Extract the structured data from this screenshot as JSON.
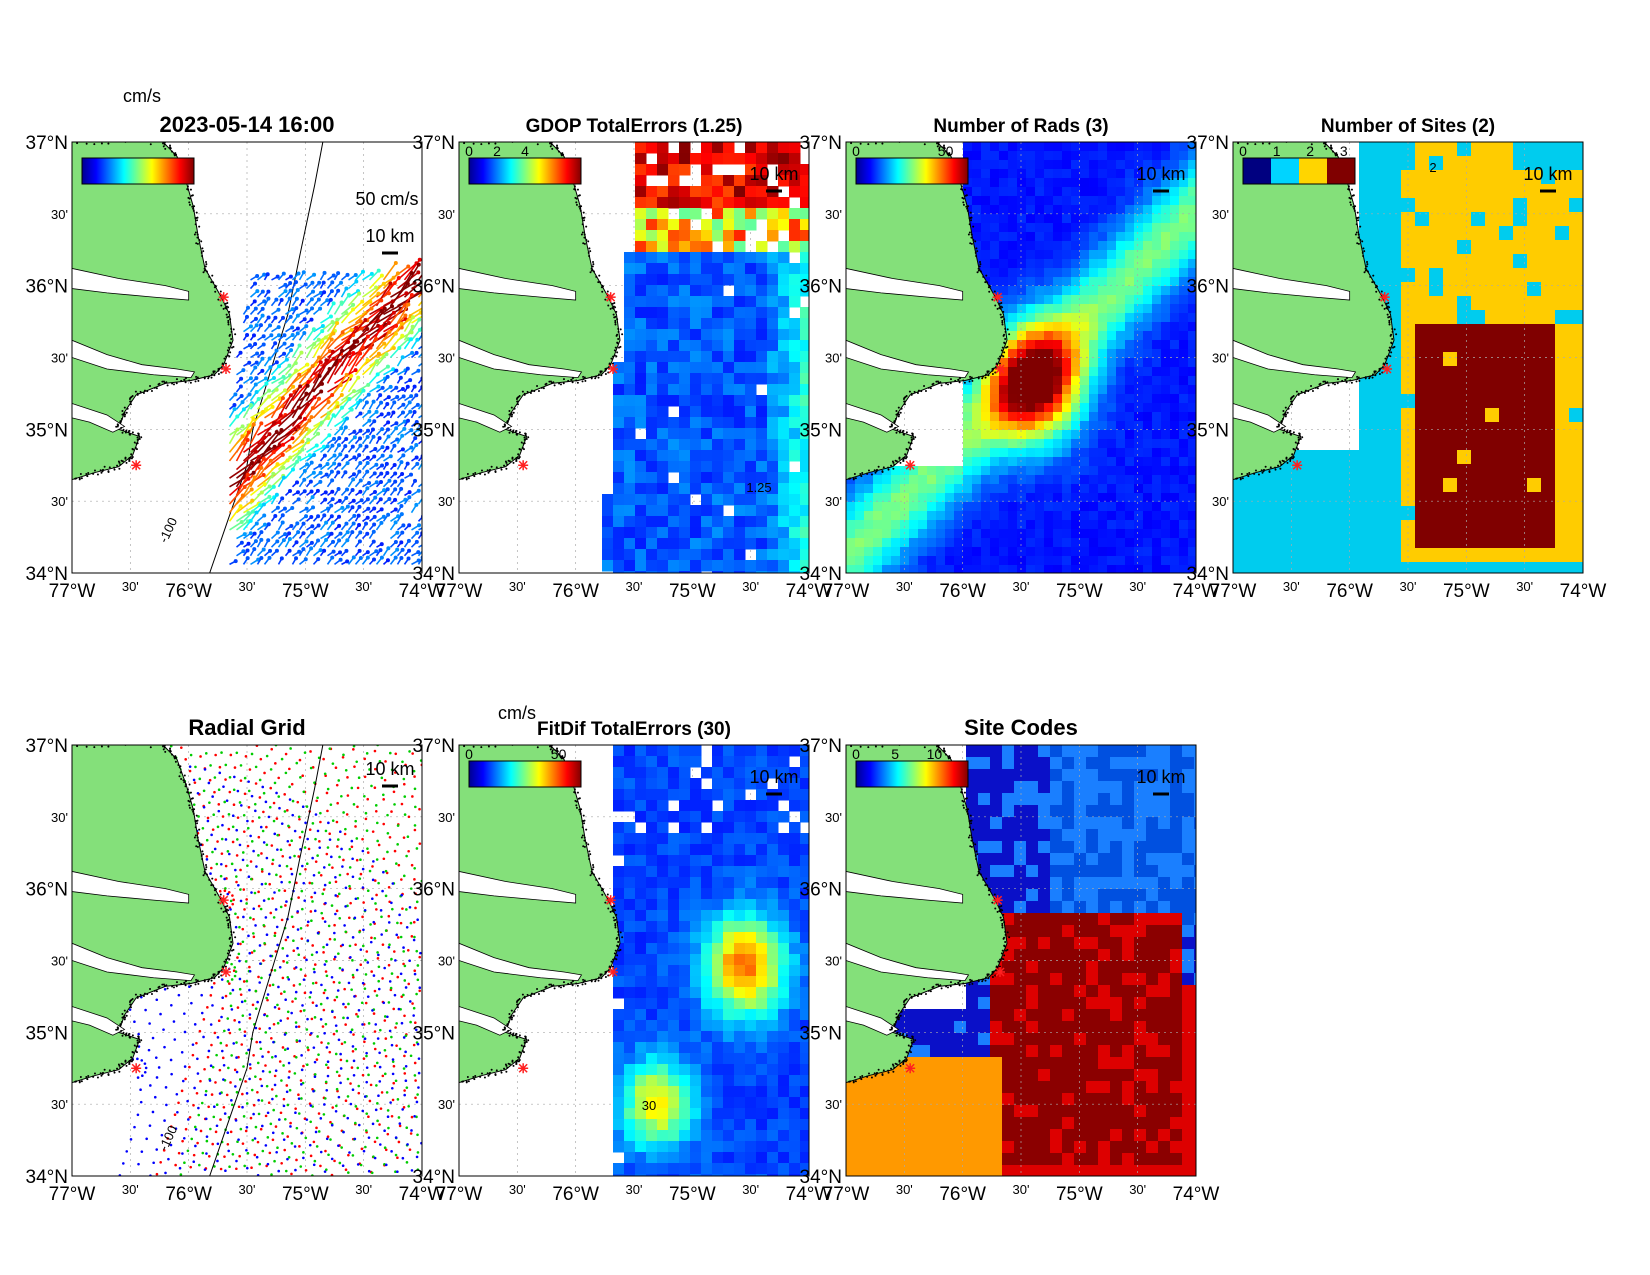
{
  "figure": {
    "land_color": "#84e07a",
    "site_color": "#ff2020",
    "lon_ticks": [
      "77°W",
      "30'",
      "76°W",
      "30'",
      "75°W",
      "30'",
      "74°W"
    ],
    "lat_ticks": [
      "37°N",
      "30'",
      "36°N",
      "30'",
      "35°N",
      "30'",
      "34°N"
    ]
  },
  "panels": [
    {
      "id": "currents",
      "title": "2023-05-14 16:00",
      "colorbar": {
        "unit": "cm/s",
        "ticks": []
      },
      "scale_arrow_label": "50 cm/s",
      "scale_bar_label": "10 km",
      "contour_label": "-100"
    },
    {
      "id": "gdop",
      "title": "GDOP TotalErrors (1.25)",
      "colorbar": {
        "unit": "",
        "ticks": [
          "0",
          "2",
          "4"
        ]
      },
      "scale_bar_label": "10 km",
      "contour_label": "1.25"
    },
    {
      "id": "rads",
      "title": "Number of Rads (3)",
      "colorbar": {
        "unit": "",
        "ticks": [
          "0",
          "50"
        ]
      },
      "scale_bar_label": "10 km",
      "contour_label": ""
    },
    {
      "id": "sites",
      "title": "Number of Sites (2)",
      "colorbar": {
        "unit": "",
        "ticks": [
          "0",
          "1",
          "2",
          "3"
        ]
      },
      "scale_bar_label": "10 km",
      "contour_label": "2"
    },
    {
      "id": "radial-grid",
      "title": "Radial Grid",
      "scale_bar_label": "10 km",
      "contour_label": "-100"
    },
    {
      "id": "fitdif",
      "title": "FitDif TotalErrors (30)",
      "colorbar": {
        "unit": "cm/s",
        "ticks": [
          "0",
          "50"
        ]
      },
      "scale_bar_label": "10 km",
      "contour_label": "30"
    },
    {
      "id": "site-codes",
      "title": "Site Codes",
      "colorbar": {
        "unit": "",
        "ticks": [
          "0",
          "5",
          "10"
        ]
      },
      "scale_bar_label": "10 km",
      "contour_label": ""
    }
  ]
}
